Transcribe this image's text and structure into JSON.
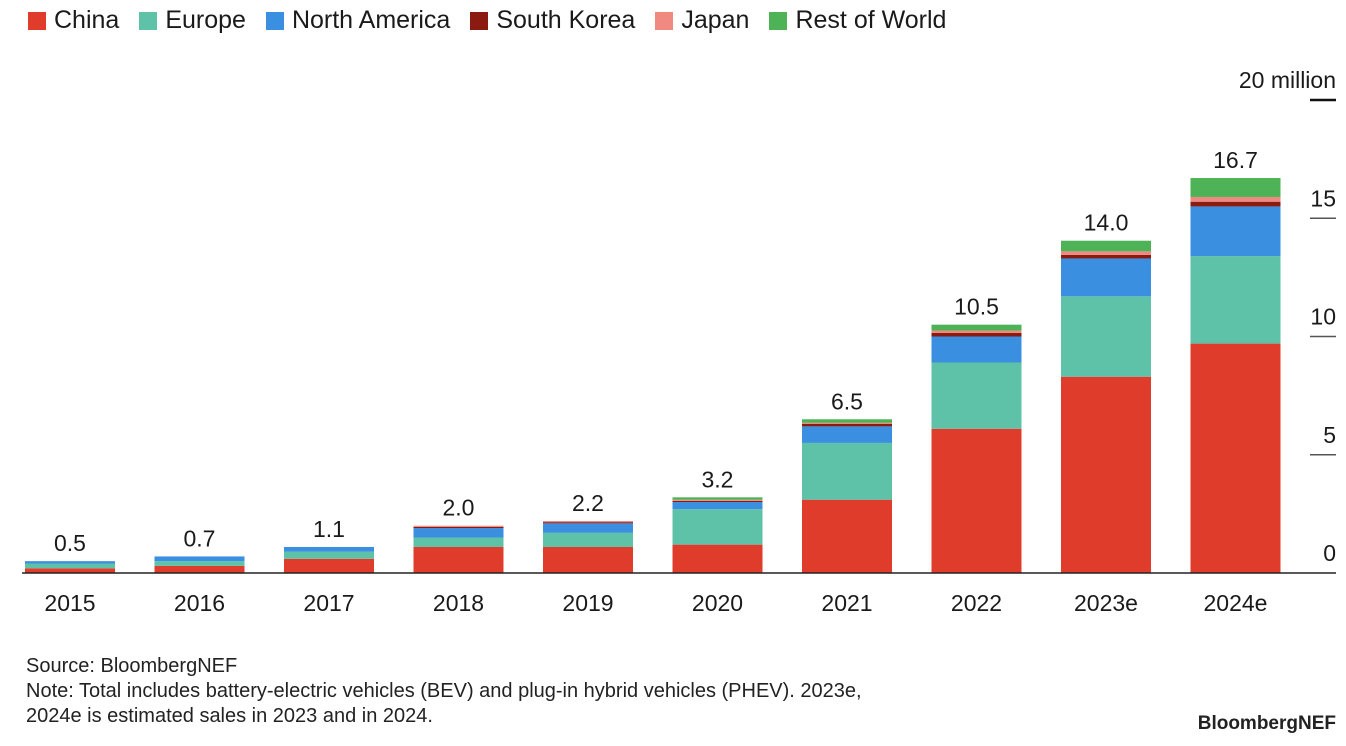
{
  "chart_data": {
    "type": "bar",
    "stacked": true,
    "categories": [
      "2015",
      "2016",
      "2017",
      "2018",
      "2019",
      "2020",
      "2021",
      "2022",
      "2023e",
      "2024e"
    ],
    "series": [
      {
        "name": "China",
        "color": "#e03c2c",
        "values": [
          0.2,
          0.3,
          0.6,
          1.1,
          1.1,
          1.2,
          3.1,
          6.1,
          8.3,
          9.7
        ]
      },
      {
        "name": "Europe",
        "color": "#5ec2a8",
        "values": [
          0.2,
          0.2,
          0.3,
          0.4,
          0.6,
          1.5,
          2.4,
          2.8,
          3.4,
          3.7
        ]
      },
      {
        "name": "North America",
        "color": "#3a8fe0",
        "values": [
          0.1,
          0.2,
          0.2,
          0.4,
          0.4,
          0.3,
          0.7,
          1.1,
          1.6,
          2.1
        ]
      },
      {
        "name": "South Korea",
        "color": "#8b1a10",
        "values": [
          0.0,
          0.0,
          0.0,
          0.05,
          0.05,
          0.05,
          0.1,
          0.15,
          0.15,
          0.2
        ]
      },
      {
        "name": "Japan",
        "color": "#f08a80",
        "values": [
          0.0,
          0.0,
          0.0,
          0.05,
          0.05,
          0.05,
          0.05,
          0.1,
          0.15,
          0.2
        ]
      },
      {
        "name": "Rest of World",
        "color": "#4db356",
        "values": [
          0.0,
          0.0,
          0.0,
          0.0,
          0.0,
          0.1,
          0.15,
          0.25,
          0.45,
          0.8
        ]
      }
    ],
    "totals": [
      "0.5",
      "0.7",
      "1.1",
      "2.0",
      "2.2",
      "3.2",
      "6.5",
      "10.5",
      "14.0",
      "16.7"
    ],
    "y_ticks": [
      0,
      5,
      10,
      15,
      20
    ],
    "y_tick_labels": [
      "0",
      "5",
      "10",
      "15",
      "20 million"
    ],
    "ylim": [
      0,
      20
    ],
    "legend_position": "top"
  },
  "footer": {
    "source": "Source: BloombergNEF",
    "note_line1": "Note: Total includes battery-electric vehicles (BEV) and plug-in hybrid vehicles (PHEV). 2023e,",
    "note_line2": "2024e is estimated sales in 2023 and in 2024.",
    "brand": "BloombergNEF"
  }
}
